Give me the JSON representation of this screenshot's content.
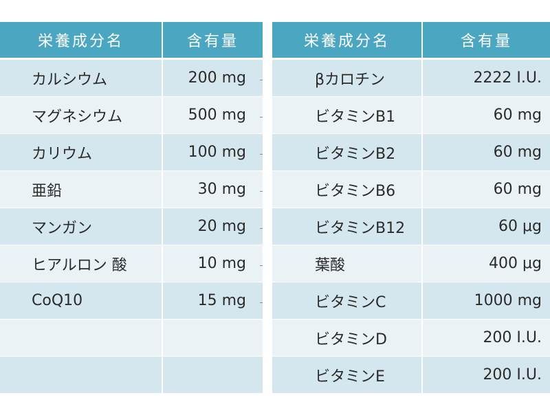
{
  "left_table": {
    "header": {
      "name": "栄養成分名",
      "amount": "含有量"
    },
    "rows": [
      {
        "name": "カルシウム",
        "amount": "200 mg"
      },
      {
        "name": "マグネシウム",
        "amount": "500 mg"
      },
      {
        "name": "カリウム",
        "amount": "100 mg"
      },
      {
        "name": "亜鉛",
        "amount": "30 mg"
      },
      {
        "name": "マンガン",
        "amount": "20 mg"
      },
      {
        "name": "ヒアルロン 酸",
        "amount": "10 mg"
      },
      {
        "name": "CoQ10",
        "amount": "15 mg"
      },
      {
        "name": "",
        "amount": ""
      },
      {
        "name": "",
        "amount": ""
      }
    ]
  },
  "right_table": {
    "header": {
      "name": "栄養成分名",
      "amount": "含有量"
    },
    "rows": [
      {
        "name": "βカロチン",
        "amount": "2222 I.U."
      },
      {
        "name": "ビタミンB1",
        "amount": "60 mg"
      },
      {
        "name": "ビタミンB2",
        "amount": "60 mg"
      },
      {
        "name": "ビタミンB6",
        "amount": "60 mg"
      },
      {
        "name": "ビタミンB12",
        "amount": "60 μg"
      },
      {
        "name": "葉酸",
        "amount": "400 μg"
      },
      {
        "name": "ビタミンC",
        "amount": "1000 mg"
      },
      {
        "name": "ビタミンD",
        "amount": "200 I.U."
      },
      {
        "name": "ビタミンE",
        "amount": "200 I.U."
      }
    ]
  },
  "colors": {
    "header_bg": "#4ba6c2",
    "row_odd_bg": "#d4e6ee",
    "row_even_bg": "#eaf2f6"
  }
}
